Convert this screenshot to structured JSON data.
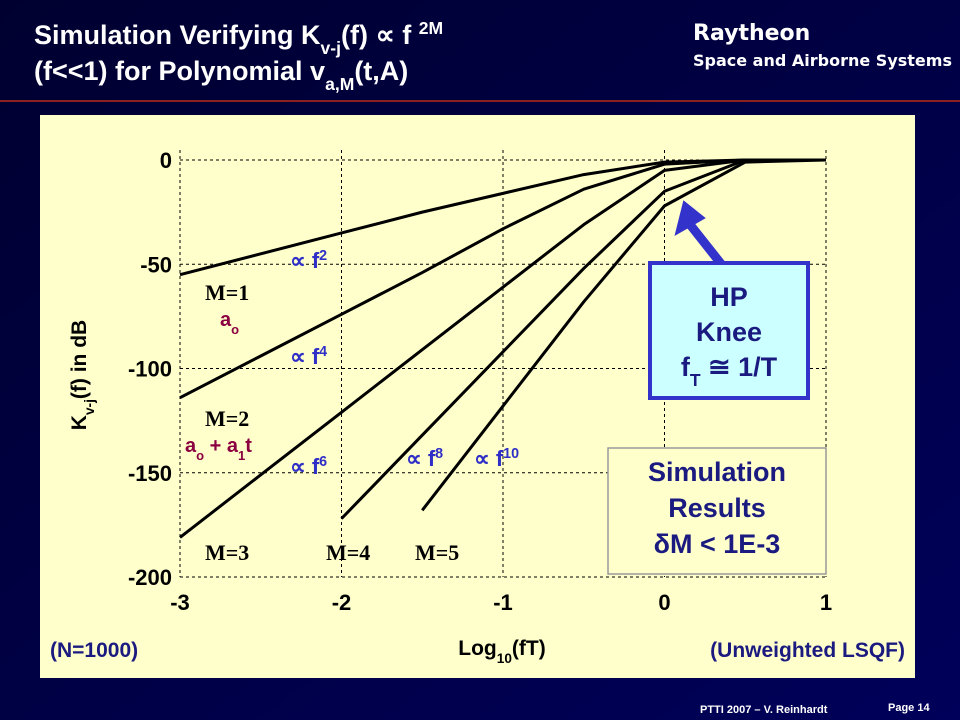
{
  "header": {
    "title_lines": [
      [
        {
          "text": "Simulation Verifying K"
        },
        {
          "text": "v-j",
          "baseline": "sub"
        },
        {
          "text": "(f) ∝ f "
        },
        {
          "text": "2M",
          "baseline": "super"
        }
      ],
      [
        {
          "text": "(f<<1) for Polynomial v"
        },
        {
          "text": "a,M",
          "baseline": "sub"
        },
        {
          "text": "(t,A)"
        }
      ]
    ],
    "logo": "Raytheon",
    "division": "Space and Airborne Systems"
  },
  "chart_data": {
    "type": "line",
    "xlabel": [
      {
        "text": "Log"
      },
      {
        "text": "10",
        "baseline": "sub"
      },
      {
        "text": "(fT)"
      }
    ],
    "ylabel": [
      {
        "text": "K"
      },
      {
        "text": "v-j",
        "baseline": "sub"
      },
      {
        "text": "(f) in dB"
      }
    ],
    "x": [
      -3,
      -2.5,
      -2,
      -1.5,
      -1,
      -0.5,
      0,
      0.5,
      1
    ],
    "series": [
      {
        "name": "M=1",
        "color": "#000000",
        "values": [
          -55,
          -45,
          -35,
          -25,
          -16,
          -7,
          -1,
          0,
          0
        ]
      },
      {
        "name": "M=2",
        "color": "#000000",
        "values": [
          -114,
          -94,
          -74,
          -54,
          -33,
          -14,
          -2,
          0,
          0
        ]
      },
      {
        "name": "M=3",
        "color": "#000000",
        "values": [
          -181,
          -151,
          -121,
          -91,
          -61,
          -31,
          -5,
          0,
          0
        ]
      },
      {
        "name": "M=4",
        "color": "#000000",
        "values": [
          null,
          null,
          -172,
          -132,
          -92,
          -52,
          -15,
          0,
          0
        ]
      },
      {
        "name": "M=5",
        "color": "#000000",
        "values": [
          null,
          null,
          null,
          -168,
          -118,
          -68,
          -22,
          -1,
          0
        ]
      }
    ],
    "xlim": [
      -3,
      1
    ],
    "ylim": [
      -200,
      0
    ],
    "xticks": [
      -3,
      -2,
      -1,
      0,
      1
    ],
    "yticks": [
      0,
      -50,
      -100,
      -150,
      -200
    ],
    "grid": true,
    "slope_labels": [
      [
        {
          "text": "∝ f"
        },
        {
          "text": "2",
          "baseline": "super"
        }
      ],
      [
        {
          "text": "∝ f"
        },
        {
          "text": "4",
          "baseline": "super"
        }
      ],
      [
        {
          "text": "∝ f"
        },
        {
          "text": "6",
          "baseline": "super"
        }
      ],
      [
        {
          "text": "∝ f"
        },
        {
          "text": "8",
          "baseline": "super"
        }
      ],
      [
        {
          "text": "∝ f"
        },
        {
          "text": "10",
          "baseline": "super"
        }
      ]
    ],
    "model_labels": [
      [
        {
          "text": "a"
        },
        {
          "text": "o",
          "baseline": "sub"
        }
      ],
      [
        {
          "text": "a"
        },
        {
          "text": "o",
          "baseline": "sub"
        },
        {
          "text": " + a"
        },
        {
          "text": "1",
          "baseline": "sub"
        },
        {
          "text": "t"
        }
      ]
    ],
    "knee_box": [
      [
        {
          "text": "HP"
        }
      ],
      [
        {
          "text": "Knee"
        }
      ],
      [
        {
          "text": "f"
        },
        {
          "text": "T",
          "baseline": "sub"
        },
        {
          "text": " ≅ 1/T"
        }
      ]
    ],
    "results_box": [
      [
        {
          "text": "Simulation"
        }
      ],
      [
        {
          "text": "Results"
        }
      ],
      [
        {
          "text": "δM < 1E-3"
        }
      ]
    ],
    "note_left": "(N=1000)",
    "note_right": "(Unweighted LSQF)"
  },
  "footer": {
    "credit": "PTTI 2007 – V. Reinhardt",
    "page": "Page 14"
  }
}
